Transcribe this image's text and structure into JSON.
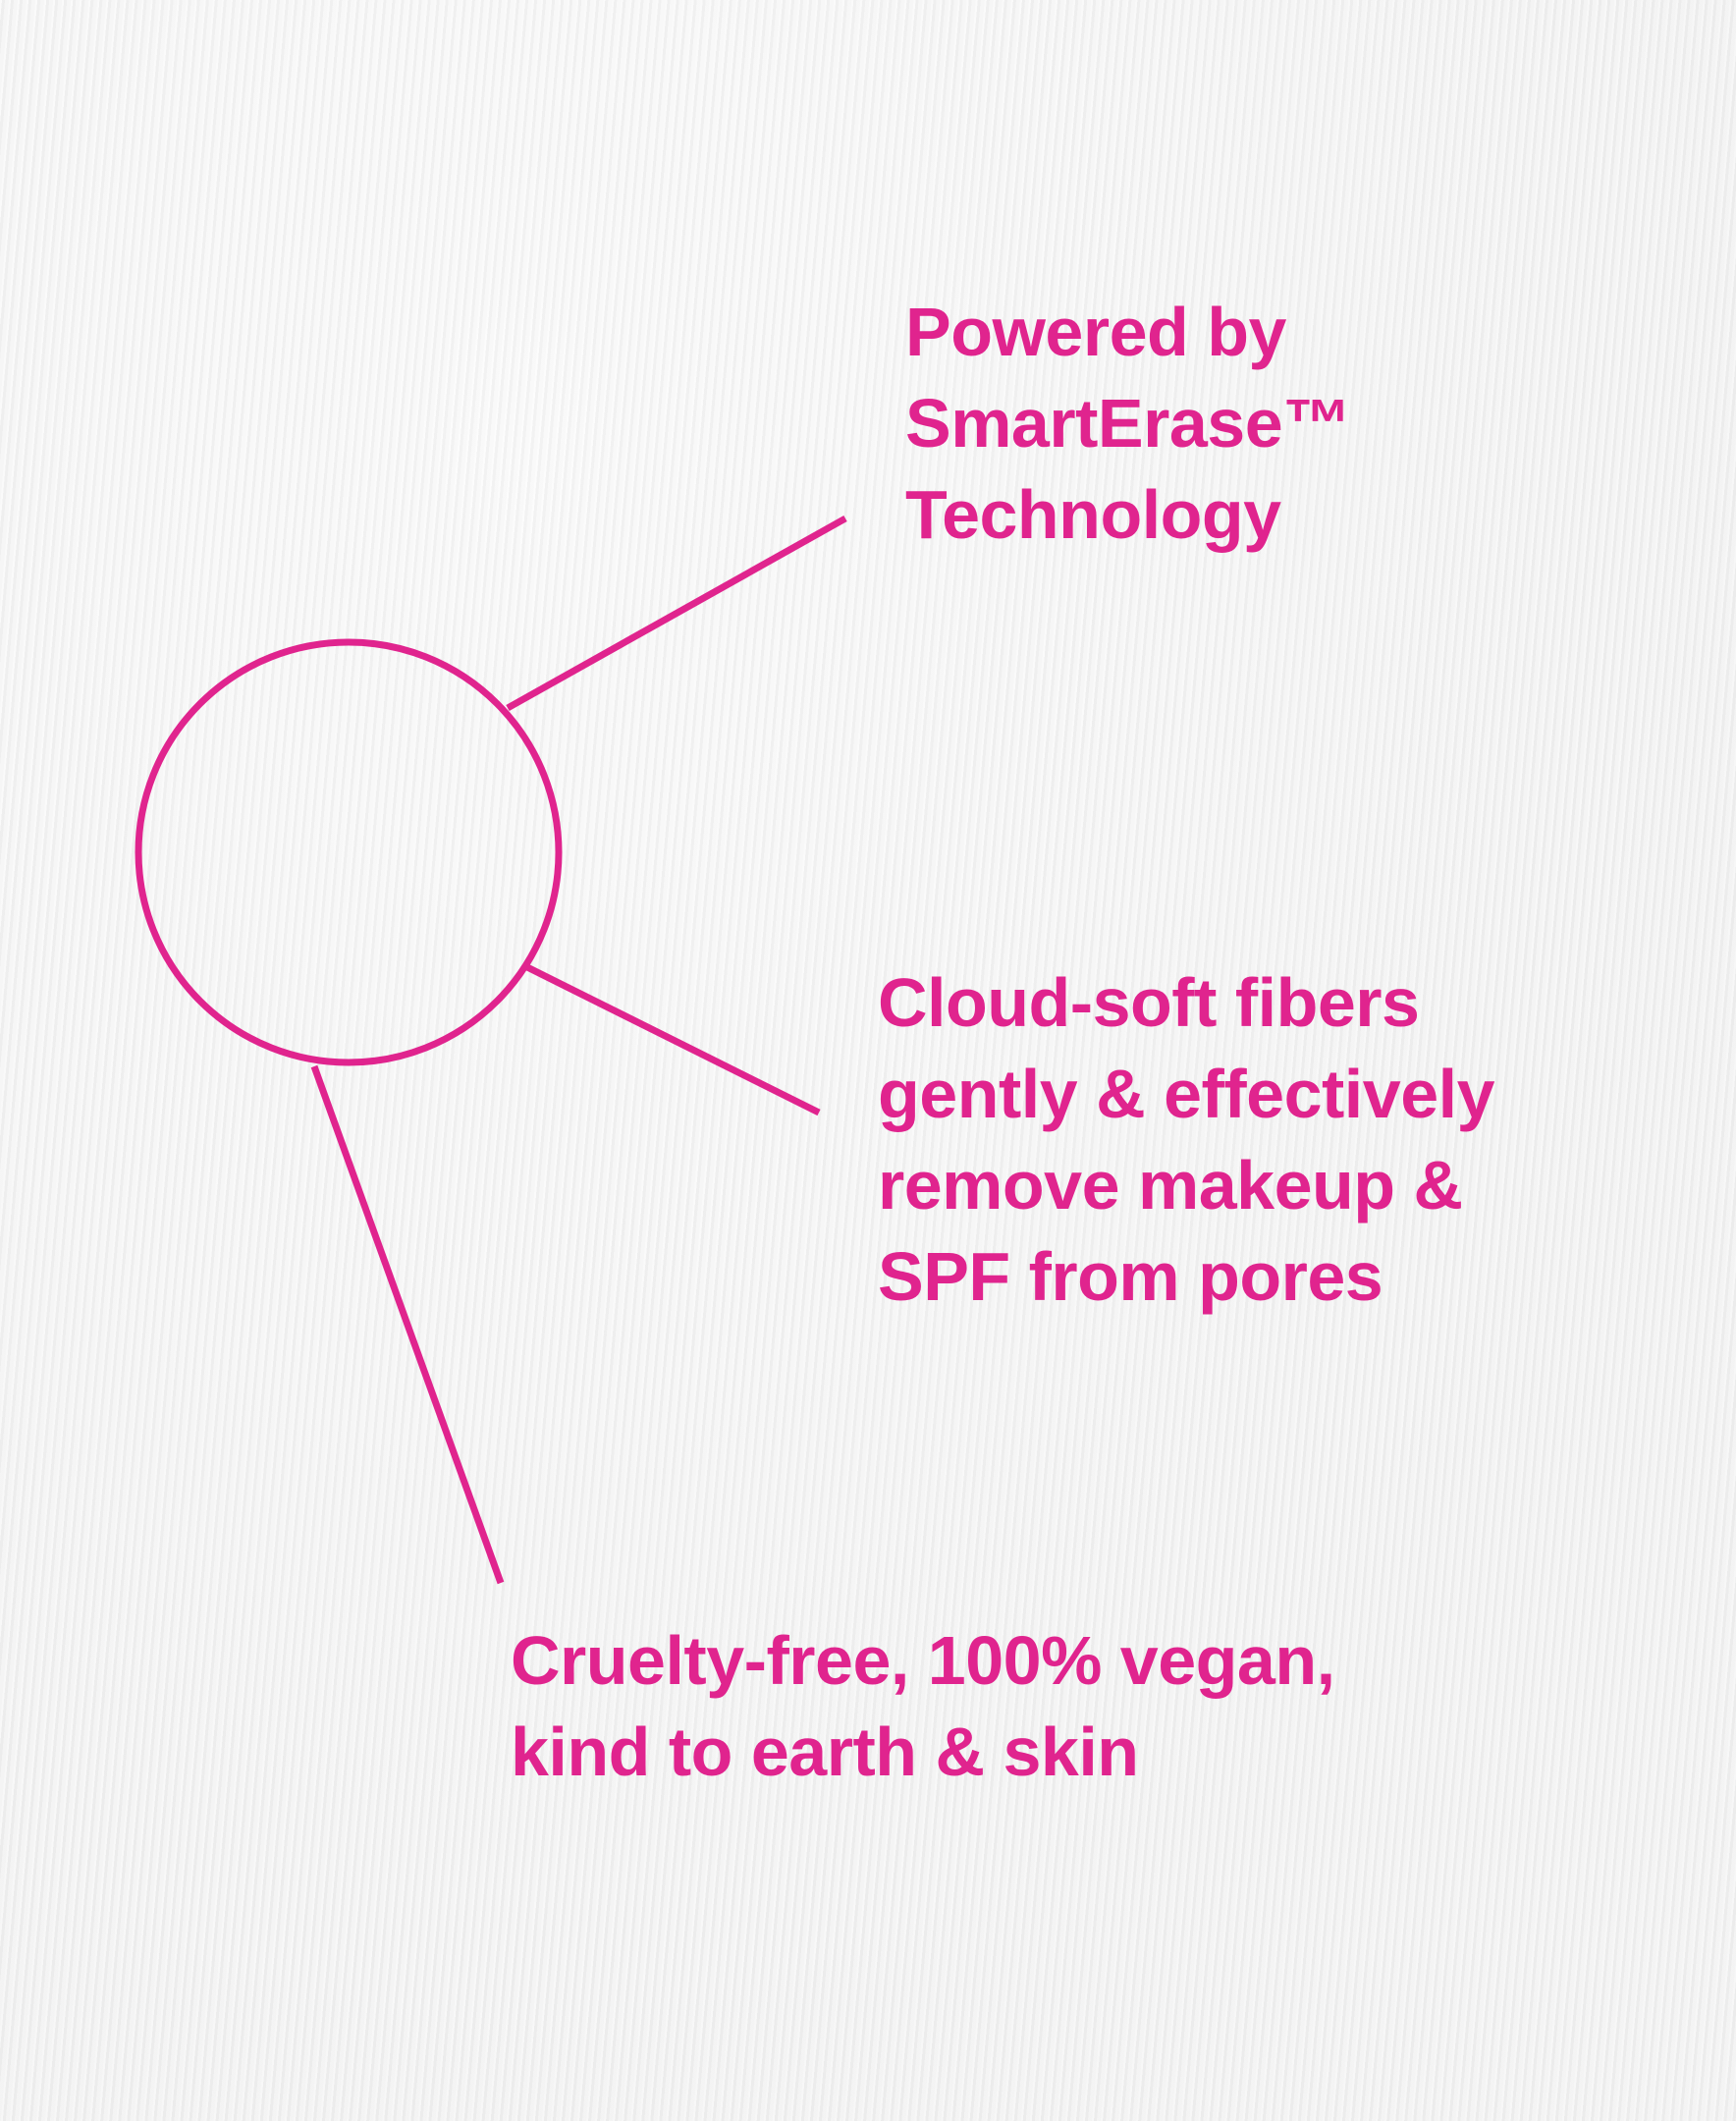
{
  "accent_color": "#e0248e",
  "callouts": [
    {
      "lines": [
        "Powered by",
        "SmartErase™",
        "Technology"
      ]
    },
    {
      "lines": [
        "Cloud-soft fibers",
        "gently & effectively",
        "remove makeup &",
        "SPF from pores"
      ]
    },
    {
      "lines": [
        "Cruelty-free, 100% vegan,",
        "kind to earth & skin"
      ]
    }
  ]
}
